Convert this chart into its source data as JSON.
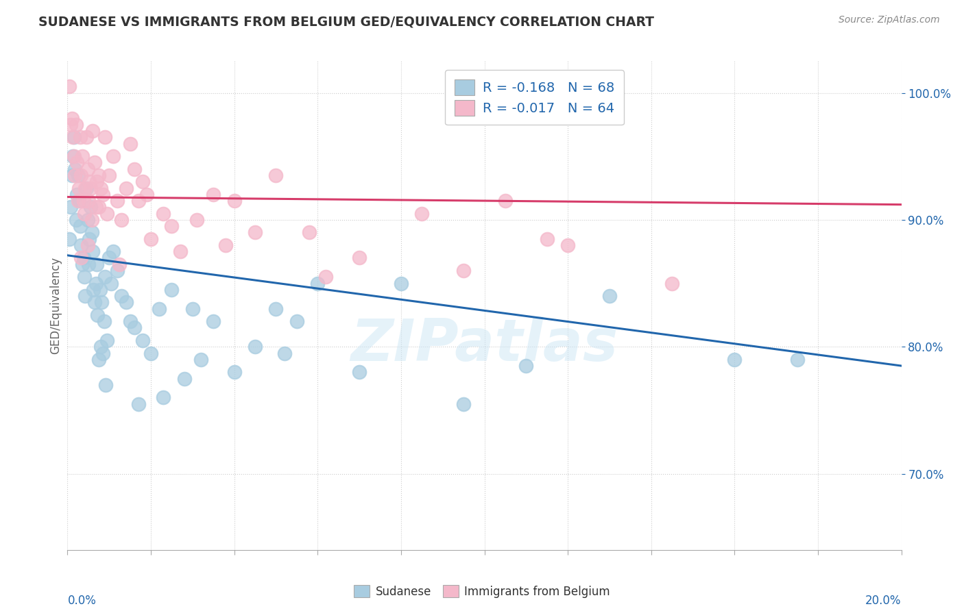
{
  "title": "SUDANESE VS IMMIGRANTS FROM BELGIUM GED/EQUIVALENCY CORRELATION CHART",
  "source": "Source: ZipAtlas.com",
  "ylabel": "GED/Equivalency",
  "xmin": 0.0,
  "xmax": 20.0,
  "ymin": 64.0,
  "ymax": 102.5,
  "yticks": [
    70.0,
    80.0,
    90.0,
    100.0
  ],
  "ytick_labels": [
    "70.0%",
    "80.0%",
    "90.0%",
    "100.0%"
  ],
  "blue_dot_color": "#a8cce0",
  "pink_dot_color": "#f4b8ca",
  "blue_line_color": "#2166ac",
  "pink_line_color": "#d63c6a",
  "legend_text_color": "#2166ac",
  "legend_blue_label": "R = -0.168   N = 68",
  "legend_pink_label": "R = -0.017   N = 64",
  "blue_trend_x0": 0.0,
  "blue_trend_x1": 20.0,
  "blue_trend_y0": 87.2,
  "blue_trend_y1": 78.5,
  "pink_trend_x0": 0.0,
  "pink_trend_x1": 20.0,
  "pink_trend_y0": 91.8,
  "pink_trend_y1": 91.2,
  "blue_scatter_x": [
    0.05,
    0.08,
    0.1,
    0.12,
    0.15,
    0.18,
    0.2,
    0.22,
    0.25,
    0.28,
    0.3,
    0.33,
    0.35,
    0.38,
    0.4,
    0.42,
    0.45,
    0.48,
    0.5,
    0.52,
    0.55,
    0.58,
    0.6,
    0.62,
    0.65,
    0.68,
    0.7,
    0.72,
    0.75,
    0.78,
    0.8,
    0.82,
    0.85,
    0.88,
    0.9,
    0.95,
    1.0,
    1.05,
    1.1,
    1.2,
    1.3,
    1.4,
    1.5,
    1.6,
    1.8,
    2.0,
    2.2,
    2.5,
    3.0,
    3.5,
    4.0,
    4.5,
    5.0,
    5.5,
    6.0,
    7.0,
    8.0,
    9.5,
    11.0,
    13.0,
    16.0,
    17.5,
    5.2,
    3.2,
    2.8,
    2.3,
    1.7,
    0.92
  ],
  "blue_scatter_y": [
    88.5,
    91.0,
    93.5,
    95.0,
    96.5,
    94.0,
    90.0,
    92.0,
    93.5,
    91.5,
    89.5,
    88.0,
    86.5,
    87.0,
    85.5,
    84.0,
    92.5,
    90.0,
    86.5,
    88.5,
    91.0,
    89.0,
    87.5,
    84.5,
    83.5,
    85.0,
    86.5,
    82.5,
    79.0,
    84.5,
    80.0,
    83.5,
    79.5,
    82.0,
    85.5,
    80.5,
    87.0,
    85.0,
    87.5,
    86.0,
    84.0,
    83.5,
    82.0,
    81.5,
    80.5,
    79.5,
    83.0,
    84.5,
    83.0,
    82.0,
    78.0,
    80.0,
    83.0,
    82.0,
    85.0,
    78.0,
    85.0,
    75.5,
    78.5,
    84.0,
    79.0,
    79.0,
    79.5,
    79.0,
    77.5,
    76.0,
    75.5,
    77.0
  ],
  "pink_scatter_x": [
    0.05,
    0.08,
    0.1,
    0.12,
    0.15,
    0.18,
    0.2,
    0.22,
    0.25,
    0.28,
    0.3,
    0.33,
    0.35,
    0.38,
    0.4,
    0.42,
    0.45,
    0.48,
    0.5,
    0.52,
    0.55,
    0.6,
    0.65,
    0.7,
    0.75,
    0.8,
    0.9,
    1.0,
    1.1,
    1.2,
    1.3,
    1.4,
    1.5,
    1.6,
    1.7,
    1.8,
    2.0,
    2.3,
    2.7,
    3.1,
    3.5,
    4.0,
    4.5,
    5.0,
    5.8,
    7.0,
    8.5,
    9.5,
    10.5,
    12.0,
    14.5,
    2.5,
    1.9,
    0.95,
    0.85,
    0.75,
    0.68,
    0.58,
    0.48,
    1.25,
    3.8,
    6.2,
    11.5,
    0.32
  ],
  "pink_scatter_y": [
    100.5,
    97.5,
    98.0,
    96.5,
    95.0,
    93.5,
    97.5,
    94.5,
    91.5,
    92.5,
    96.5,
    93.5,
    95.0,
    91.5,
    90.5,
    92.5,
    96.5,
    94.0,
    91.5,
    93.0,
    92.5,
    97.0,
    94.5,
    93.0,
    91.0,
    92.5,
    96.5,
    93.5,
    95.0,
    91.5,
    90.0,
    92.5,
    96.0,
    94.0,
    91.5,
    93.0,
    88.5,
    90.5,
    87.5,
    90.0,
    92.0,
    91.5,
    89.0,
    93.5,
    89.0,
    87.0,
    90.5,
    86.0,
    91.5,
    88.0,
    85.0,
    89.5,
    92.0,
    90.5,
    92.0,
    93.5,
    91.0,
    90.0,
    88.0,
    86.5,
    88.0,
    85.5,
    88.5,
    87.0
  ],
  "watermark": "ZIPatlas",
  "bg_color": "#ffffff",
  "grid_color": "#cccccc"
}
